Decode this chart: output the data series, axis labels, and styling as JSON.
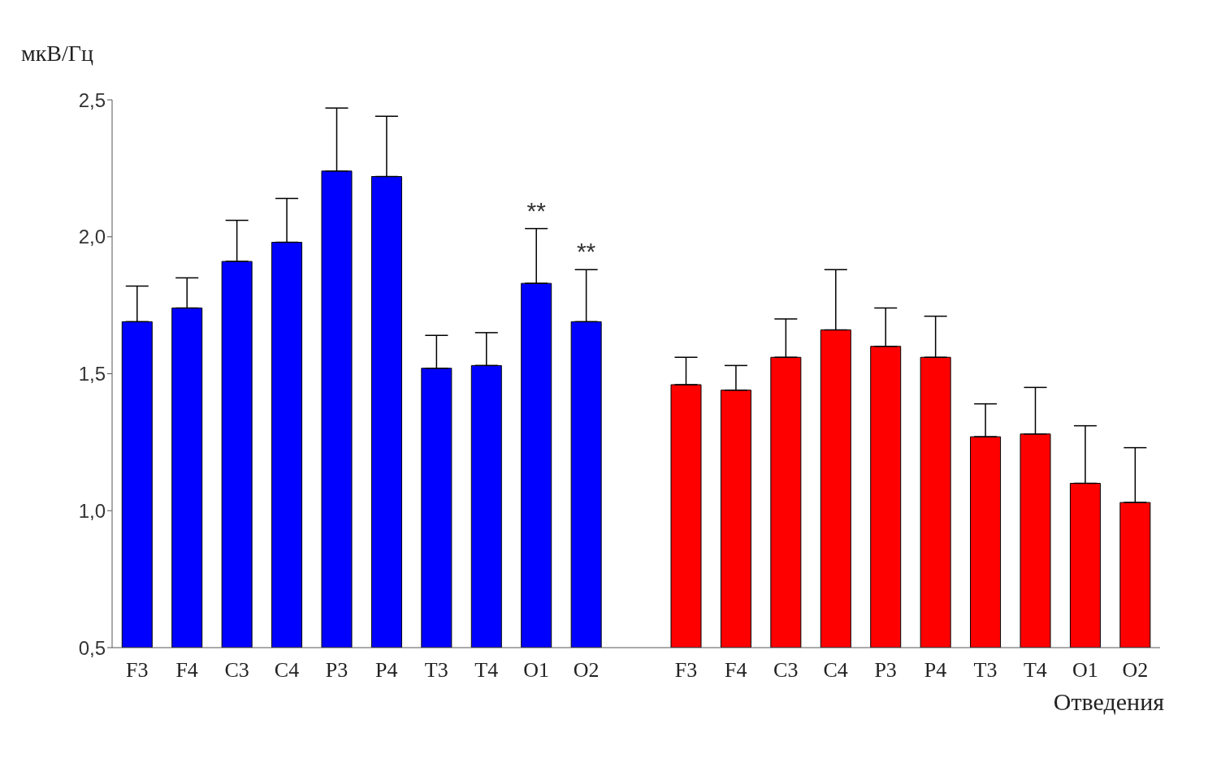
{
  "chart_data": {
    "type": "bar",
    "ylabel": "мкВ/Гц",
    "xlabel": "Отведения",
    "categories": [
      "F3",
      "F4",
      "C3",
      "C4",
      "P3",
      "P4",
      "T3",
      "T4",
      "O1",
      "O2",
      null,
      "F3",
      "F4",
      "C3",
      "C4",
      "P3",
      "P4",
      "T3",
      "T4",
      "O1",
      "O2"
    ],
    "values": [
      1.69,
      1.74,
      1.91,
      1.98,
      2.24,
      2.22,
      1.52,
      1.53,
      1.83,
      1.69,
      null,
      1.46,
      1.44,
      1.56,
      1.66,
      1.6,
      1.56,
      1.27,
      1.28,
      1.1,
      1.03
    ],
    "colors": [
      "#0000ff",
      "#0000ff",
      "#0000ff",
      "#0000ff",
      "#0000ff",
      "#0000ff",
      "#0000ff",
      "#0000ff",
      "#0000ff",
      "#0000ff",
      "#0000ff",
      "#ff0000",
      "#ff0000",
      "#ff0000",
      "#ff0000",
      "#ff0000",
      "#ff0000",
      "#ff0000",
      "#ff0000",
      "#ff0000",
      "#ff0000"
    ],
    "errors": [
      [
        1.69,
        1.82
      ],
      [
        1.74,
        1.85
      ],
      [
        1.91,
        2.06
      ],
      [
        1.98,
        2.14
      ],
      [
        2.24,
        2.47
      ],
      [
        2.22,
        2.44
      ],
      [
        1.52,
        1.64
      ],
      [
        1.53,
        1.65
      ],
      [
        1.83,
        2.03
      ],
      [
        1.69,
        1.88
      ],
      null,
      [
        1.46,
        1.56
      ],
      [
        1.44,
        1.53
      ],
      [
        1.56,
        1.7
      ],
      [
        1.66,
        1.88
      ],
      [
        1.6,
        1.74
      ],
      [
        1.56,
        1.71
      ],
      [
        1.27,
        1.39
      ],
      [
        1.28,
        1.45
      ],
      [
        1.1,
        1.31
      ],
      [
        1.03,
        1.23
      ]
    ],
    "annotations": [
      {
        "text": "**",
        "x": "O1",
        "y": 2.03
      },
      {
        "text": "**",
        "x": "O2",
        "y": 1.88
      }
    ],
    "ylim": [
      0.5,
      2.5
    ],
    "yticks": [
      {
        "value": 0.5,
        "label": "0,5"
      },
      {
        "value": 1,
        "label": "1,0"
      },
      {
        "value": 1.5,
        "label": "1,5"
      },
      {
        "value": 2,
        "label": "2,0"
      },
      {
        "value": 2.5,
        "label": "2,5"
      }
    ],
    "grid": false,
    "legend": false
  }
}
